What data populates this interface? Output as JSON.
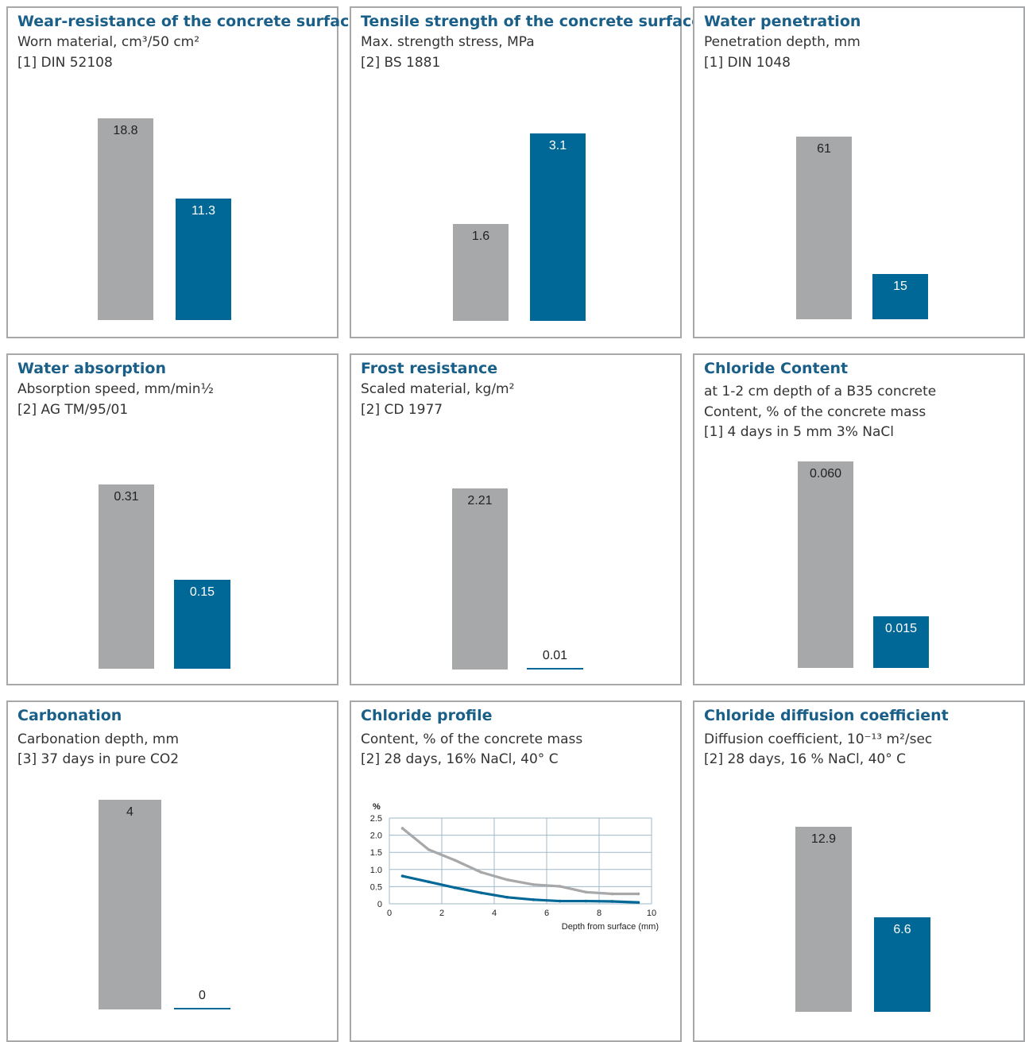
{
  "colors": {
    "title": "#1a5f88",
    "reference": "#a7a8aa",
    "product": "#006896",
    "border": "#a7a8aa"
  },
  "panels": [
    {
      "title": "Wear-resistance of the concrete surface",
      "lines": [
        "Worn material, cm³/50 cm²",
        "[1] DIN 52108"
      ]
    },
    {
      "title": "Tensile strength of the concrete surface",
      "lines": [
        "Max. strength stress, MPa",
        "[2] BS 1881"
      ]
    },
    {
      "title": "Water penetration",
      "lines": [
        "Penetration depth, mm",
        "[1] DIN 1048"
      ]
    },
    {
      "title": "Water absorption",
      "lines": [
        "Absorption speed, mm/min½",
        "[2] AG TM/95/01"
      ]
    },
    {
      "title": "Frost resistance",
      "lines": [
        "Scaled material, kg/m²",
        "[2] CD 1977"
      ]
    },
    {
      "title": "Chloride Content",
      "lines": [
        "at 1-2 cm depth of a B35 concrete",
        "Content, % of the concrete mass",
        "[1] 4 days in 5 mm 3% NaCl"
      ]
    },
    {
      "title": "Carbonation",
      "lines": [
        "Carbonation depth, mm",
        "[3] 37 days in pure CO2"
      ]
    },
    {
      "title": "Chloride profile",
      "lines": [
        "Content, % of the concrete mass",
        "[2] 28 days, 16% NaCl, 40° C"
      ]
    },
    {
      "title": "Chloride diffusion coefficient",
      "lines": [
        "Diffusion coefficient, 10⁻¹³ m²/sec",
        "[2] 28 days, 16 % NaCl, 40° C"
      ]
    }
  ],
  "chart_data": [
    {
      "type": "bar",
      "panel": 0,
      "values": [
        18.8,
        11.3
      ],
      "labels": [
        "18.8",
        "11.3"
      ]
    },
    {
      "type": "bar",
      "panel": 1,
      "values": [
        1.6,
        3.1
      ],
      "labels": [
        "1.6",
        "3.1"
      ]
    },
    {
      "type": "bar",
      "panel": 2,
      "values": [
        61,
        15
      ],
      "labels": [
        "61",
        "15"
      ]
    },
    {
      "type": "bar",
      "panel": 3,
      "values": [
        0.31,
        0.15
      ],
      "labels": [
        "0.31",
        "0.15"
      ]
    },
    {
      "type": "bar",
      "panel": 4,
      "values": [
        2.21,
        0.01
      ],
      "labels": [
        "2.21",
        "0.01"
      ]
    },
    {
      "type": "bar",
      "panel": 5,
      "values": [
        0.06,
        0.015
      ],
      "labels": [
        "0.060",
        "0.015"
      ]
    },
    {
      "type": "bar",
      "panel": 6,
      "values": [
        4,
        0
      ],
      "labels": [
        "4",
        "0"
      ]
    },
    {
      "type": "line",
      "panel": 7,
      "ylabel": "%",
      "xlabel": "Depth from surface (mm)",
      "xlim": [
        0,
        10
      ],
      "ylim": [
        0,
        2.5
      ],
      "x_ticks": [
        0,
        2,
        4,
        6,
        8,
        10
      ],
      "y_ticks": [
        "0",
        "0.5",
        "1.0",
        "1.5",
        "2.0",
        "2.5"
      ],
      "grid": true,
      "series": [
        {
          "color": "#a7a8aa",
          "x": [
            0.5,
            1.5,
            2.5,
            3.5,
            4.5,
            5.5,
            6.5,
            7.5,
            8.5,
            9.5
          ],
          "y": [
            2.2,
            1.58,
            1.27,
            0.92,
            0.7,
            0.56,
            0.51,
            0.34,
            0.29,
            0.29
          ]
        },
        {
          "color": "#006896",
          "x": [
            0.5,
            1.5,
            2.5,
            3.5,
            4.5,
            5.5,
            6.5,
            7.5,
            8.5,
            9.5
          ],
          "y": [
            0.81,
            0.64,
            0.47,
            0.32,
            0.19,
            0.12,
            0.08,
            0.08,
            0.07,
            0.04
          ]
        }
      ]
    },
    {
      "type": "bar",
      "panel": 8,
      "values": [
        12.9,
        6.6
      ],
      "labels": [
        "12.9",
        "6.6"
      ]
    }
  ]
}
